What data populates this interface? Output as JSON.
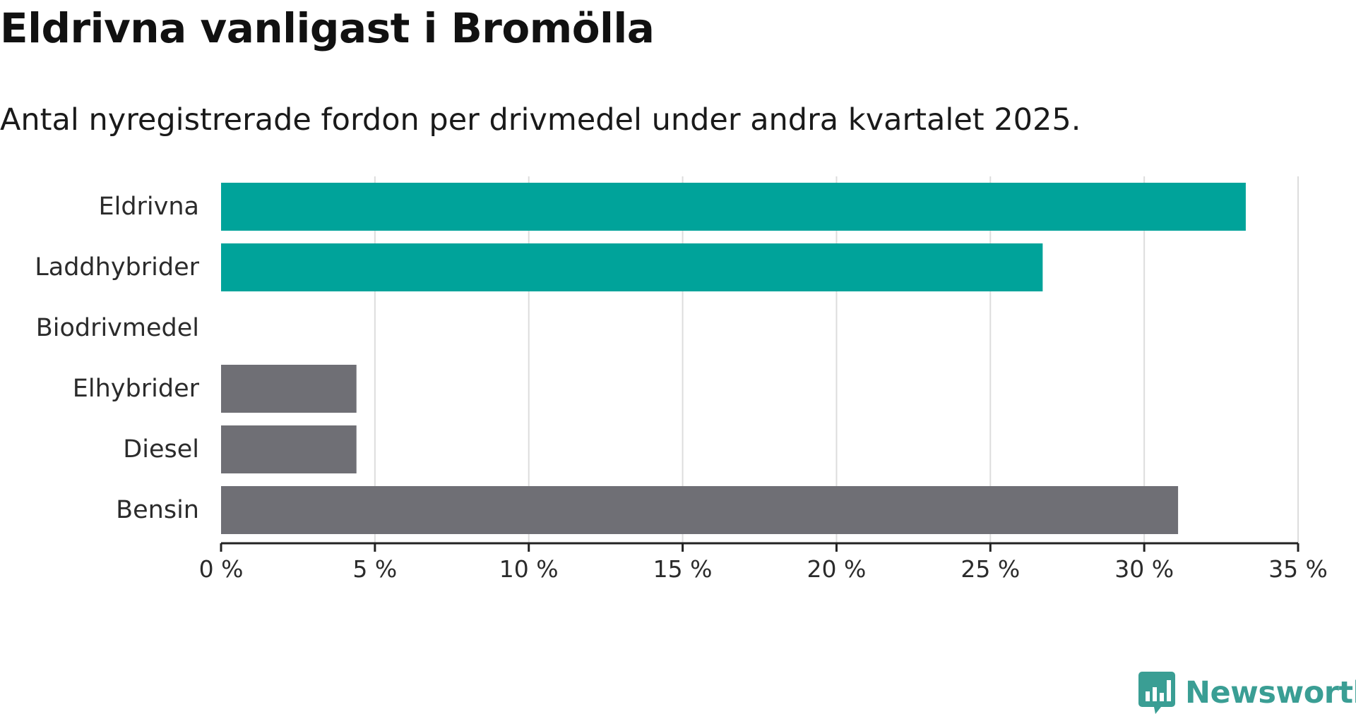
{
  "title": "Eldrivna vanligast i Bromölla",
  "subtitle": "Antal nyregistrerade fordon per drivmedel under andra kvartalet 2025.",
  "brand": {
    "name": "Newsworthy",
    "color": "#3a9e94",
    "icon": "newsworthy-bar-chart-speech-bubble-icon"
  },
  "colors": {
    "highlight": "#00a39a",
    "other": "#6f6f75",
    "grid": "#dddddd",
    "axis": "#222222"
  },
  "chart_data": {
    "type": "bar",
    "orientation": "horizontal",
    "categories": [
      "Eldrivna",
      "Laddhybrider",
      "Biodrivmedel",
      "Elhybrider",
      "Diesel",
      "Bensin"
    ],
    "values": [
      33.3,
      26.7,
      0,
      4.4,
      4.4,
      31.1
    ],
    "highlighted": [
      true,
      true,
      false,
      false,
      false,
      false
    ],
    "xlim": [
      0,
      35
    ],
    "xticks": [
      0,
      5,
      10,
      15,
      20,
      25,
      30,
      35
    ],
    "xtick_labels": [
      "0 %",
      "5 %",
      "10 %",
      "15 %",
      "20 %",
      "25 %",
      "30 %",
      "35 %"
    ],
    "grid": "vertical",
    "legend": "none"
  }
}
